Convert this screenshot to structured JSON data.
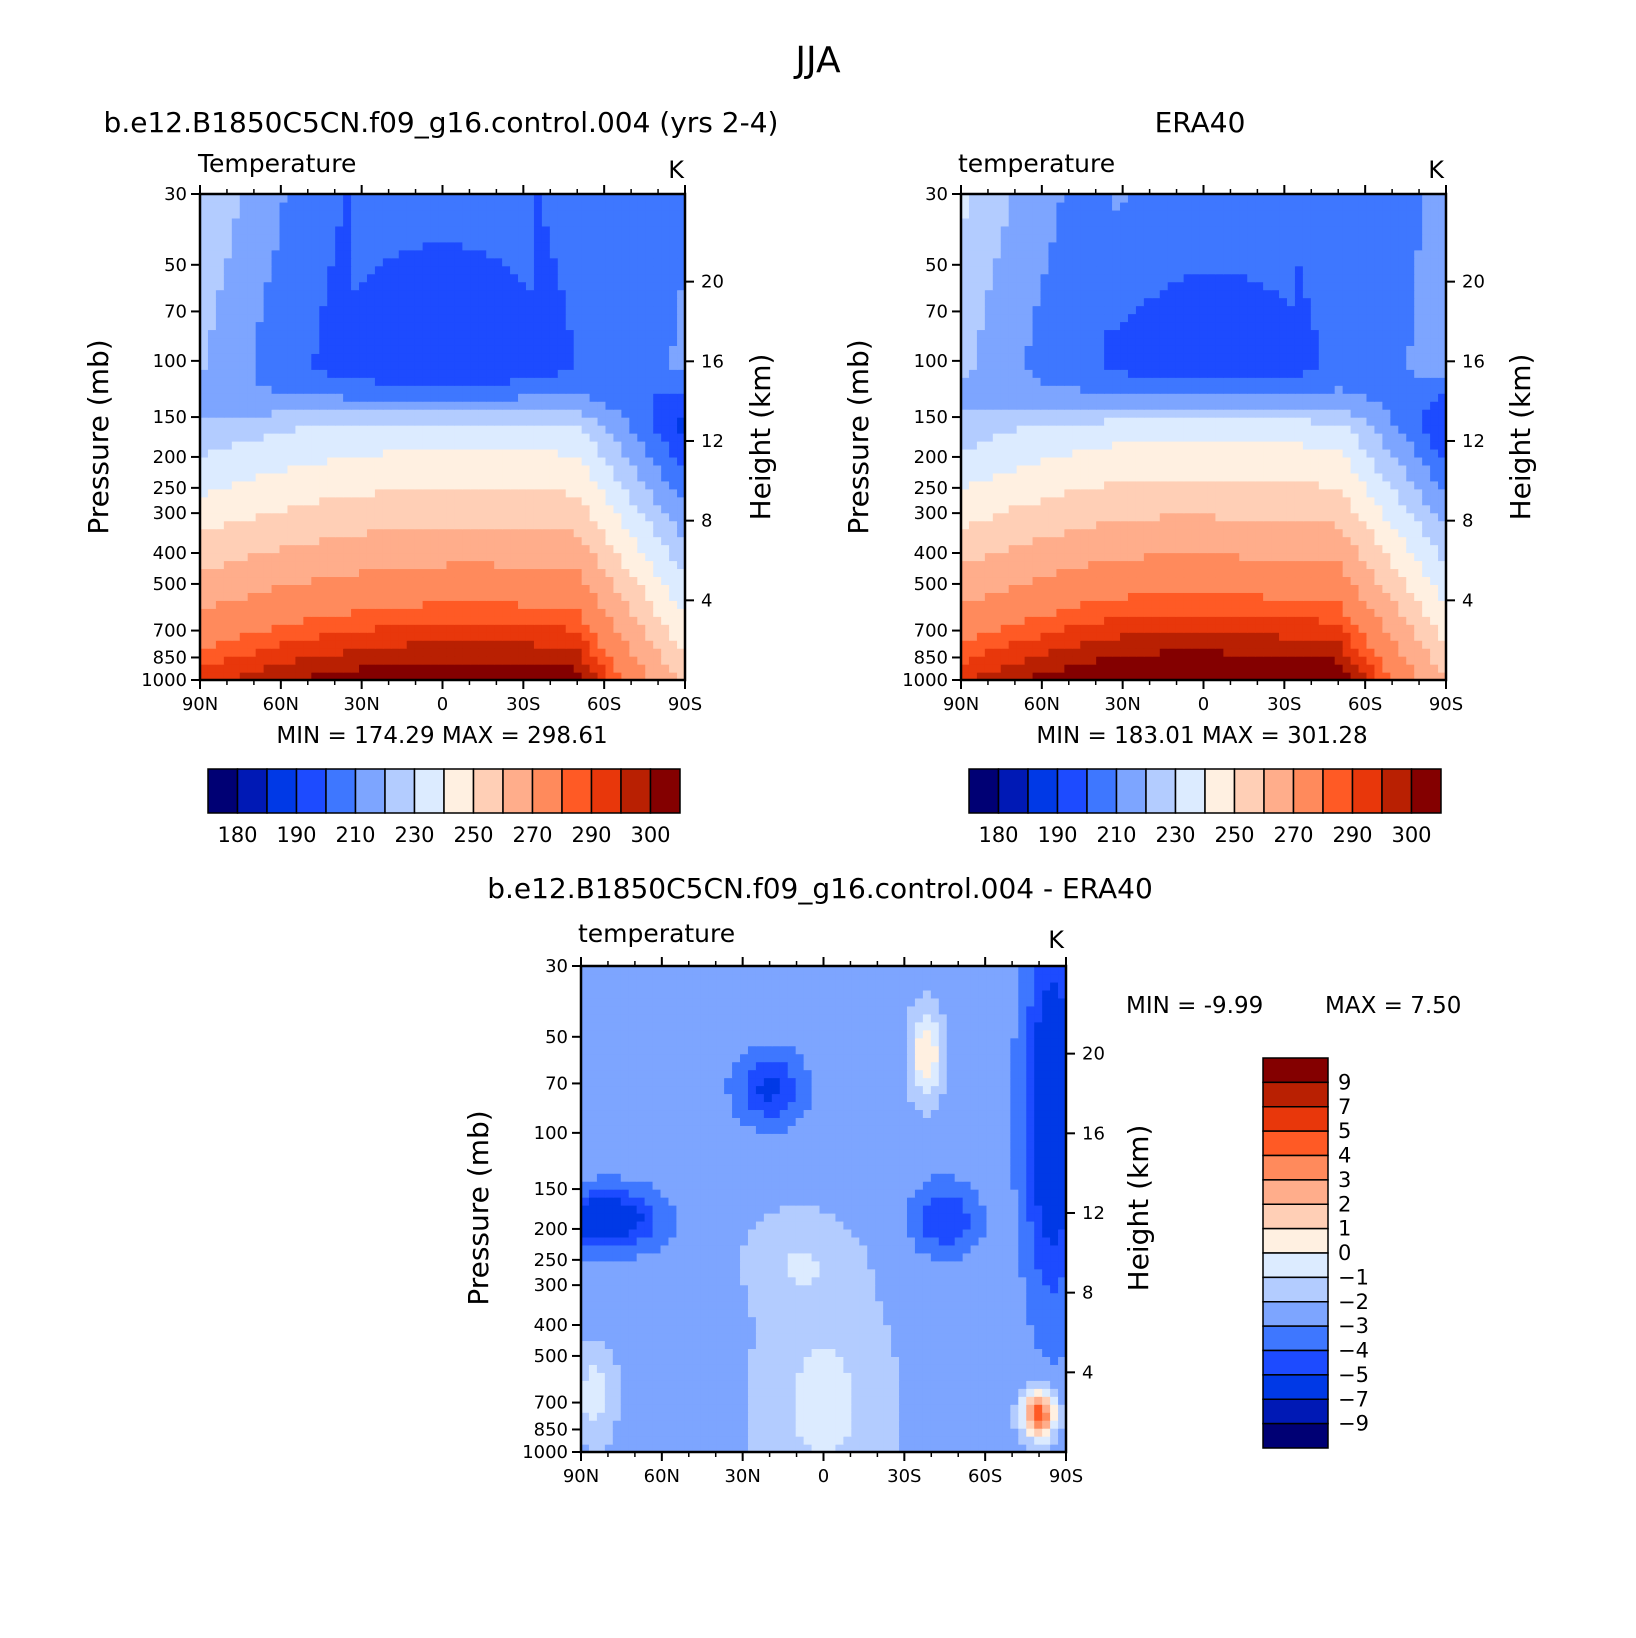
{
  "figure": {
    "title": "JJA",
    "panel_titles": [
      "b.e12.B1850C5CN.f09_g16.control.004 (yrs 2-4)",
      "ERA40",
      "b.e12.B1850C5CN.f09_g16.control.004 - ERA40"
    ]
  },
  "palettes": {
    "temperature": [
      "#000074",
      "#0019b5",
      "#0039e6",
      "#1d4bff",
      "#3e77ff",
      "#7da5ff",
      "#b3ccff",
      "#dcebff",
      "#fff0e1",
      "#ffcfb6",
      "#ffad8b",
      "#ff8a5c",
      "#ff5a25",
      "#e8370b",
      "#b92002",
      "#840000"
    ],
    "difference": [
      "#000074",
      "#0019b5",
      "#0039e6",
      "#1d4bff",
      "#3e77ff",
      "#7da5ff",
      "#b3ccff",
      "#dcebff",
      "#fff0e1",
      "#ffcfb6",
      "#ffad8b",
      "#ff8a5c",
      "#ff5a25",
      "#e8370b",
      "#b92002",
      "#840000"
    ]
  },
  "chart_data": [
    {
      "type": "heatmap",
      "panel": "model",
      "title": "b.e12.B1850C5CN.f09_g16.control.004 (yrs 2-4)",
      "subtitle_left": "Temperature",
      "units": "K",
      "ylabel": "Pressure (mb)",
      "ylabel_right": "Height (km)",
      "x_ticks": [
        "90N",
        "60N",
        "30N",
        "0",
        "30S",
        "60S",
        "90S"
      ],
      "x_range": [
        90,
        -90
      ],
      "y_ticks": [
        "30",
        "50",
        "70",
        "100",
        "150",
        "200",
        "250",
        "300",
        "400",
        "500",
        "700",
        "850",
        "1000"
      ],
      "y_range": [
        1000,
        30
      ],
      "y_scale": "log",
      "y_right_ticks": [
        "20",
        "16",
        "12",
        "8",
        "4"
      ],
      "stats": "MIN = 174.29 MAX = 298.61",
      "colorbar_labels": [
        "180",
        "190",
        "210",
        "230",
        "250",
        "270",
        "290",
        "300"
      ],
      "levels": [
        180,
        185,
        190,
        200,
        210,
        220,
        230,
        240,
        250,
        260,
        270,
        280,
        285,
        290,
        295
      ]
    },
    {
      "type": "heatmap",
      "panel": "era40",
      "title": "ERA40",
      "subtitle_left": "temperature",
      "units": "K",
      "ylabel": "Pressure (mb)",
      "ylabel_right": "Height (km)",
      "x_ticks": [
        "90N",
        "60N",
        "30N",
        "0",
        "30S",
        "60S",
        "90S"
      ],
      "x_range": [
        90,
        -90
      ],
      "y_ticks": [
        "30",
        "50",
        "70",
        "100",
        "150",
        "200",
        "250",
        "300",
        "400",
        "500",
        "700",
        "850",
        "1000"
      ],
      "y_range": [
        1000,
        30
      ],
      "y_scale": "log",
      "y_right_ticks": [
        "20",
        "16",
        "12",
        "8",
        "4"
      ],
      "stats": "MIN = 183.01 MAX = 301.28",
      "colorbar_labels": [
        "180",
        "190",
        "210",
        "230",
        "250",
        "270",
        "290",
        "300"
      ],
      "levels": [
        180,
        185,
        190,
        200,
        210,
        220,
        230,
        240,
        250,
        260,
        270,
        280,
        285,
        290,
        295
      ]
    },
    {
      "type": "heatmap",
      "panel": "difference",
      "title": "b.e12.B1850C5CN.f09_g16.control.004 - ERA40",
      "subtitle_left": "temperature",
      "units": "K",
      "ylabel": "Pressure (mb)",
      "ylabel_right": "Height (km)",
      "x_ticks": [
        "90N",
        "60N",
        "30N",
        "0",
        "30S",
        "60S",
        "90S"
      ],
      "x_range": [
        90,
        -90
      ],
      "y_ticks": [
        "30",
        "50",
        "70",
        "100",
        "150",
        "200",
        "250",
        "300",
        "400",
        "500",
        "700",
        "850",
        "1000"
      ],
      "y_range": [
        1000,
        30
      ],
      "y_scale": "log",
      "y_right_ticks": [
        "20",
        "16",
        "12",
        "8",
        "4"
      ],
      "stats_min": "MIN = -9.99",
      "stats_max": "MAX = 7.50",
      "colorbar_labels": [
        "9",
        "7",
        "5",
        "4",
        "3",
        "2",
        "1",
        "0",
        "-1",
        "-2",
        "-3",
        "-4",
        "-5",
        "-7",
        "-9"
      ],
      "levels": [
        -9,
        -7,
        -5,
        -4,
        -3,
        -2,
        -1,
        0,
        1,
        2,
        3,
        4,
        5,
        7,
        9
      ]
    }
  ]
}
